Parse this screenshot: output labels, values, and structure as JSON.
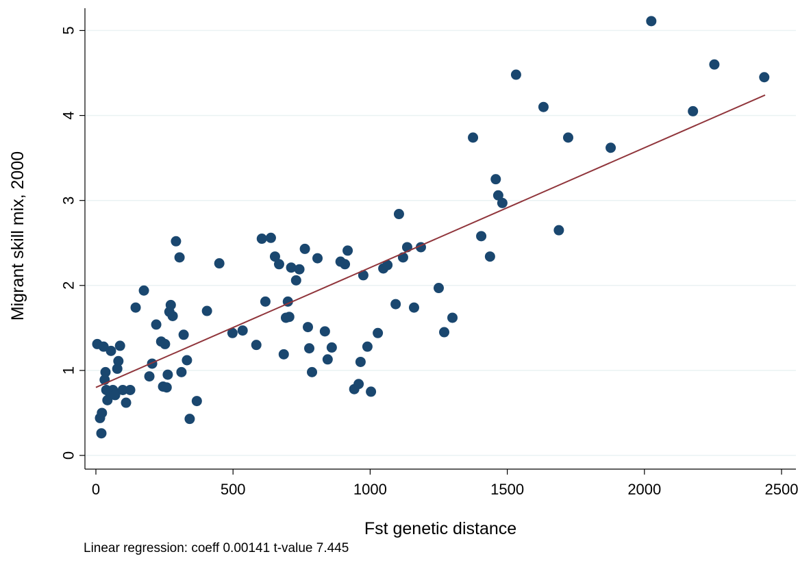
{
  "chart_data": {
    "type": "scatter",
    "title": "",
    "xlabel": "Fst genetic distance",
    "ylabel": "Migrant skill mix, 2000",
    "xlim": [
      0,
      2500
    ],
    "ylim": [
      0,
      5
    ],
    "xticks": [
      "0",
      "500",
      "1000",
      "1500",
      "2000",
      "2500"
    ],
    "yticks": [
      "0",
      "1",
      "2",
      "3",
      "4",
      "5"
    ],
    "grid": true,
    "legend": "none",
    "marker_color": "#1a476f",
    "fit_color": "#90353b",
    "fit_line": {
      "x": [
        0,
        2440
      ],
      "y": [
        0.8,
        4.24
      ]
    },
    "note": "Linear regression: coeff 0.00141 t-value 7.445",
    "points": [
      [
        5,
        1.31
      ],
      [
        15,
        0.44
      ],
      [
        20,
        0.26
      ],
      [
        22,
        0.5
      ],
      [
        28,
        1.28
      ],
      [
        32,
        0.89
      ],
      [
        35,
        0.98
      ],
      [
        38,
        0.77
      ],
      [
        42,
        0.65
      ],
      [
        50,
        0.74
      ],
      [
        55,
        1.23
      ],
      [
        62,
        0.77
      ],
      [
        70,
        0.71
      ],
      [
        78,
        1.02
      ],
      [
        82,
        1.11
      ],
      [
        88,
        1.29
      ],
      [
        98,
        0.77
      ],
      [
        110,
        0.62
      ],
      [
        125,
        0.77
      ],
      [
        145,
        1.74
      ],
      [
        175,
        1.94
      ],
      [
        195,
        0.93
      ],
      [
        205,
        1.08
      ],
      [
        220,
        1.54
      ],
      [
        238,
        1.34
      ],
      [
        245,
        0.81
      ],
      [
        252,
        1.31
      ],
      [
        258,
        0.8
      ],
      [
        262,
        0.95
      ],
      [
        268,
        1.69
      ],
      [
        273,
        1.77
      ],
      [
        280,
        1.64
      ],
      [
        292,
        2.52
      ],
      [
        305,
        2.33
      ],
      [
        312,
        0.98
      ],
      [
        320,
        1.42
      ],
      [
        332,
        1.12
      ],
      [
        342,
        0.43
      ],
      [
        368,
        0.64
      ],
      [
        405,
        1.7
      ],
      [
        450,
        2.26
      ],
      [
        498,
        1.44
      ],
      [
        535,
        1.47
      ],
      [
        585,
        1.3
      ],
      [
        605,
        2.55
      ],
      [
        618,
        1.81
      ],
      [
        638,
        2.56
      ],
      [
        653,
        2.34
      ],
      [
        668,
        2.25
      ],
      [
        685,
        1.19
      ],
      [
        693,
        1.62
      ],
      [
        700,
        1.81
      ],
      [
        705,
        1.63
      ],
      [
        712,
        2.21
      ],
      [
        730,
        2.06
      ],
      [
        742,
        2.19
      ],
      [
        762,
        2.43
      ],
      [
        773,
        1.51
      ],
      [
        778,
        1.26
      ],
      [
        788,
        0.98
      ],
      [
        808,
        2.32
      ],
      [
        835,
        1.46
      ],
      [
        845,
        1.13
      ],
      [
        860,
        1.27
      ],
      [
        892,
        2.28
      ],
      [
        908,
        2.25
      ],
      [
        918,
        2.41
      ],
      [
        942,
        0.78
      ],
      [
        958,
        0.84
      ],
      [
        965,
        1.1
      ],
      [
        975,
        2.12
      ],
      [
        990,
        1.28
      ],
      [
        1003,
        0.75
      ],
      [
        1028,
        1.44
      ],
      [
        1048,
        2.2
      ],
      [
        1063,
        2.24
      ],
      [
        1093,
        1.78
      ],
      [
        1105,
        2.84
      ],
      [
        1120,
        2.33
      ],
      [
        1135,
        2.45
      ],
      [
        1160,
        1.74
      ],
      [
        1185,
        2.45
      ],
      [
        1250,
        1.97
      ],
      [
        1270,
        1.45
      ],
      [
        1300,
        1.62
      ],
      [
        1375,
        3.74
      ],
      [
        1405,
        2.58
      ],
      [
        1437,
        2.34
      ],
      [
        1458,
        3.25
      ],
      [
        1467,
        3.06
      ],
      [
        1482,
        2.97
      ],
      [
        1532,
        4.48
      ],
      [
        1632,
        4.1
      ],
      [
        1688,
        2.65
      ],
      [
        1722,
        3.74
      ],
      [
        1877,
        3.62
      ],
      [
        2025,
        5.11
      ],
      [
        2177,
        4.05
      ],
      [
        2255,
        4.6
      ],
      [
        2437,
        4.45
      ]
    ]
  }
}
